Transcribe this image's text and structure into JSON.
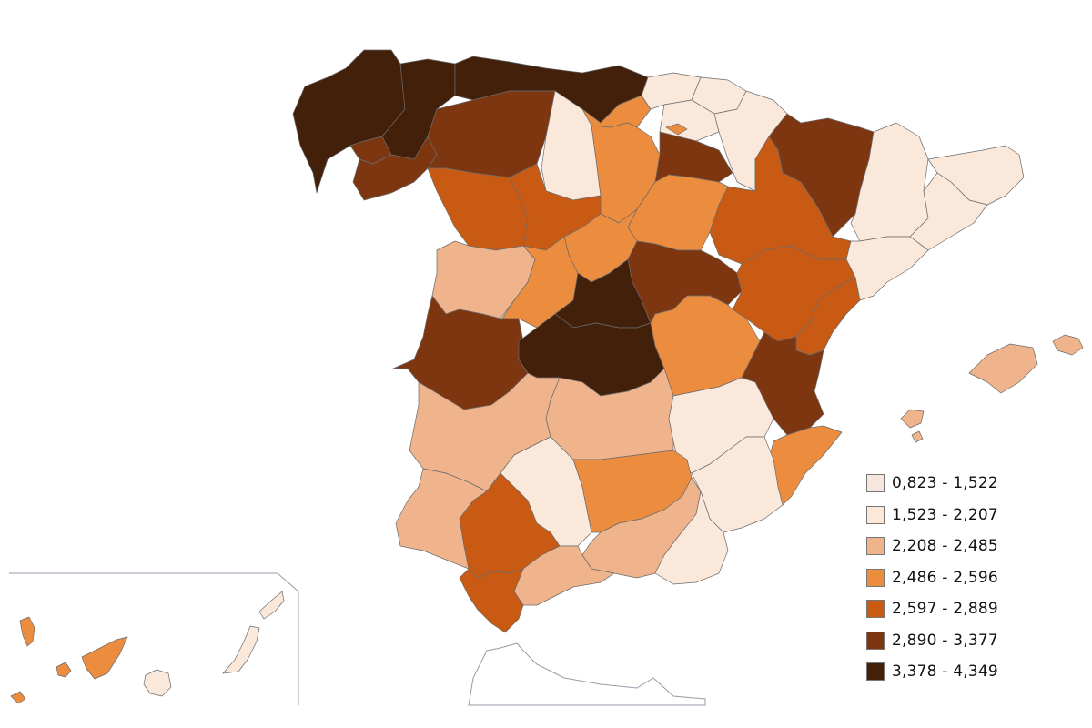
{
  "legend": {
    "items": [
      {
        "label": "0,823 - 1,522",
        "color": "#f7e6dc"
      },
      {
        "label": "1,523 - 2,207",
        "color": "#fae8db"
      },
      {
        "label": "2,208 - 2,485",
        "color": "#f0b48c"
      },
      {
        "label": "2,486 - 2,596",
        "color": "#ec8c3e"
      },
      {
        "label": "2,597 - 2,889",
        "color": "#c85a14"
      },
      {
        "label": "2,890 - 3,377",
        "color": "#7e3610"
      },
      {
        "label": "3,378 - 4,349",
        "color": "#42200a"
      }
    ]
  },
  "colors": {
    "c1": "#f7e6dc",
    "c2": "#fae8db",
    "c3": "#f0b48c",
    "c4": "#ec8c3e",
    "c5": "#c85a14",
    "c6": "#7e3610",
    "c7": "#42200a",
    "inset_border": "#9a9aa8"
  }
}
